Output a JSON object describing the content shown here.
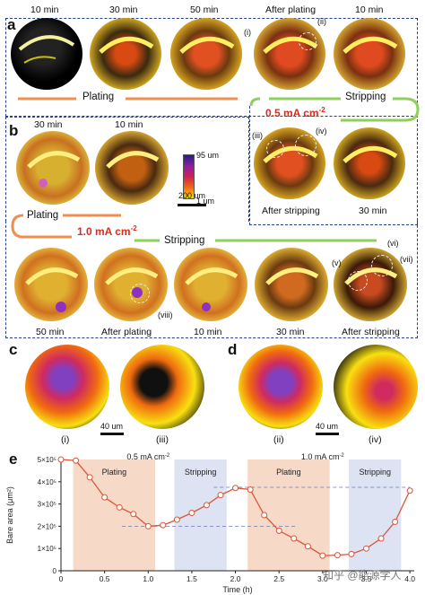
{
  "panels": {
    "a": {
      "letter": "a",
      "time_labels": [
        "10 min",
        "30 min",
        "50 min",
        "After plating",
        "10 min"
      ],
      "bottom_labels": [
        "After stripping",
        "30 min"
      ],
      "plating": "Plating",
      "stripping": "Stripping",
      "current": "0.5 mA cm",
      "current_sup": "-2",
      "markers": [
        "(i)",
        "(ii)",
        "(iii)",
        "(iv)"
      ]
    },
    "b": {
      "letter": "b",
      "time_labels_top": [
        "30 min",
        "10 min"
      ],
      "time_labels_bottom": [
        "50 min",
        "After plating",
        "10 min",
        "30 min",
        "After stripping"
      ],
      "plating": "Plating",
      "stripping": "Stripping",
      "current": "1.0 mA cm",
      "current_sup": "-2",
      "markers": [
        "(v)",
        "(vi)",
        "(vii)",
        "(viii)"
      ]
    },
    "colorbar": {
      "top": "95 um",
      "bottom": "1 um"
    },
    "scalebar_main": "200 um",
    "c": {
      "letter": "c",
      "labels": [
        "(i)",
        "(iii)"
      ],
      "scalebar": "40 um"
    },
    "d": {
      "letter": "d",
      "labels": [
        "(ii)",
        "(iv)"
      ],
      "scalebar": "40 um"
    },
    "e": {
      "letter": "e"
    }
  },
  "watermark": "知乎 @能源学人",
  "chart_data": {
    "type": "line",
    "xlabel": "Time (h)",
    "ylabel": "Bare area (μm²)",
    "xlim": [
      0,
      4.05
    ],
    "ylim": [
      0,
      500000
    ],
    "x_ticks": [
      "0",
      "0.5",
      "1.0",
      "1.5",
      "2.0",
      "2.5",
      "3.0",
      "3.5",
      "4.0"
    ],
    "y_ticks": [
      "0",
      "1×10⁵",
      "2×10⁵",
      "3×10⁵",
      "4×10⁵",
      "5×10⁵"
    ],
    "regions": [
      {
        "label": "Plating",
        "x0": 0.14,
        "x1": 1.08,
        "color": "#f7d9c8"
      },
      {
        "label": "Stripping",
        "x0": 1.3,
        "x1": 1.9,
        "color": "#dde3f2"
      },
      {
        "label": "Plating",
        "x0": 2.14,
        "x1": 3.08,
        "color": "#f7d9c8"
      },
      {
        "label": "Stripping",
        "x0": 3.3,
        "x1": 3.9,
        "color": "#dde3f2"
      }
    ],
    "region_headers": [
      {
        "text": "0.5 mA cm",
        "sup": "-2",
        "x": 1.0
      },
      {
        "text": "1.0 mA cm",
        "sup": "-2",
        "x": 3.0
      }
    ],
    "series": [
      {
        "color": "#d9563a",
        "x": [
          0.0,
          0.17,
          0.33,
          0.5,
          0.67,
          0.83,
          1.0,
          1.17,
          1.33,
          1.5,
          1.67,
          1.83,
          2.0,
          2.17,
          2.33,
          2.5,
          2.67,
          2.83,
          3.0,
          3.17,
          3.33,
          3.5,
          3.67,
          3.83,
          4.0
        ],
        "y": [
          500000,
          495000,
          420000,
          330000,
          285000,
          255000,
          200000,
          205000,
          230000,
          260000,
          295000,
          340000,
          372000,
          365000,
          250000,
          180000,
          145000,
          110000,
          68000,
          70000,
          75000,
          100000,
          145000,
          220000,
          360000
        ]
      }
    ],
    "reference_lines": [
      {
        "y": 375000,
        "x0": 1.75,
        "x1": 4.0
      },
      {
        "y": 200000,
        "x0": 0.7,
        "x1": 2.7
      }
    ]
  }
}
